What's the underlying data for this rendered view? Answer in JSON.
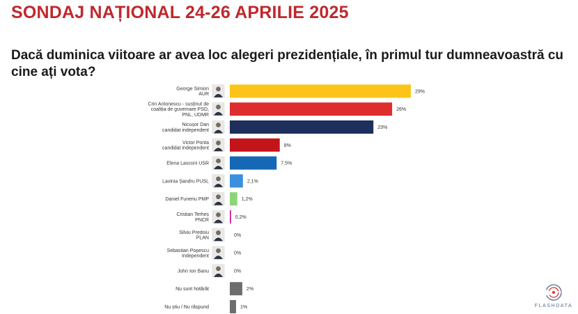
{
  "header": {
    "title": "SONDAJ NAȚIONAL 24-26 APRILIE 2025",
    "question": "Dacă duminica viitoare ar avea loc alegeri prezidențiale, în primul tur dumneavoastră cu cine ați vota?"
  },
  "logo": {
    "text": "FLASHDATA"
  },
  "chart_data": {
    "type": "bar",
    "orientation": "horizontal",
    "title": "",
    "xlabel": "",
    "ylabel": "",
    "xlim": [
      0,
      29
    ],
    "grid": false,
    "legend": "none",
    "categories": [
      [
        "George Simion",
        "AUR"
      ],
      [
        "Crin Antonescu - susținut de",
        "coaliția de guvernare PSD,",
        "PNL, UDMR"
      ],
      [
        "Nicușor Dan",
        "candidat independent"
      ],
      [
        "Victor Ponta",
        "candidat independent"
      ],
      [
        "Elena Lasconi USR"
      ],
      [
        "Lavinia Șandru PUSL"
      ],
      [
        "Daniel Funeriu PMP"
      ],
      [
        "Cristian Terheș",
        "PNCR"
      ],
      [
        "Silviu Predoiu",
        "PLAN"
      ],
      [
        "Sebastian Popescu",
        "Independent"
      ],
      [
        "John Ion Banu"
      ],
      [
        "Nu sunt hotărât"
      ],
      [
        "Nu știu / Nu răspund"
      ]
    ],
    "values": [
      29,
      26,
      23,
      8,
      7.5,
      2.1,
      1.2,
      0.2,
      0,
      0,
      0,
      2,
      1
    ],
    "value_labels": [
      "29%",
      "26%",
      "23%",
      "8%",
      "7,5%",
      "2,1%",
      "1,2%",
      "0,2%",
      "0%",
      "0%",
      "0%",
      "2%",
      "1%"
    ],
    "colors": [
      "#fcc419",
      "#dd2d2d",
      "#1d2f5a",
      "#c3141a",
      "#1468b5",
      "#3b8fdc",
      "#8ed37a",
      "#d11b8c",
      "#888888",
      "#888888",
      "#888888",
      "#6d6d6d",
      "#6d6d6d"
    ],
    "has_photo": [
      true,
      true,
      true,
      true,
      true,
      true,
      true,
      true,
      true,
      true,
      true,
      false,
      false
    ]
  }
}
